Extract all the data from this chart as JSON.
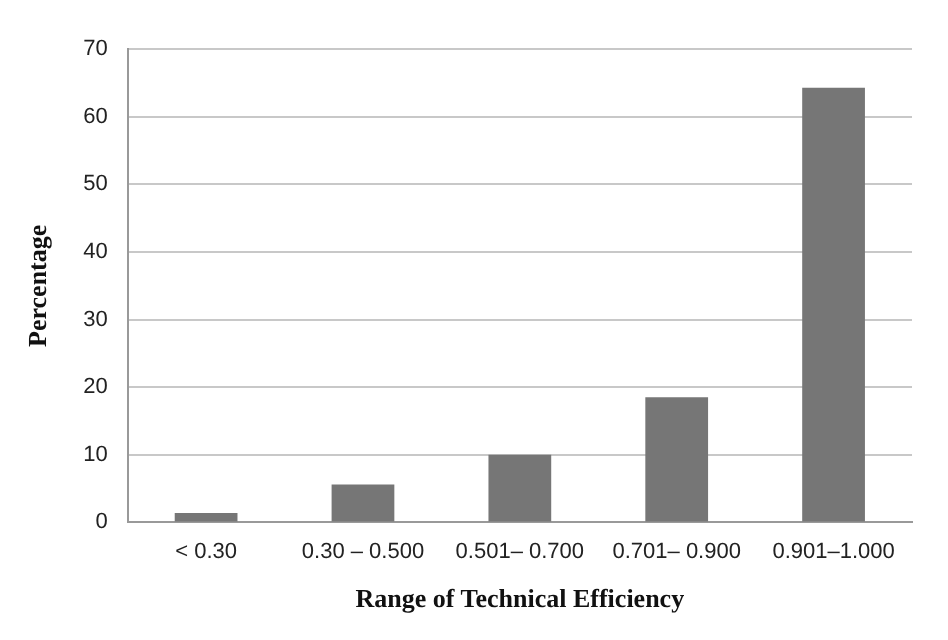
{
  "chart_data": {
    "type": "bar",
    "xlabel": "Range of Technical Efficiency",
    "ylabel": "Percentage",
    "categories": [
      "< 0.30",
      "0.30 – 0.500",
      "0.501– 0.700",
      "0.701– 0.900",
      "0.901–1.000"
    ],
    "values": [
      1.4,
      5.6,
      10.0,
      18.5,
      64.3
    ],
    "color": "#767676",
    "ylim": [
      0,
      70
    ],
    "yticks": [
      0,
      10,
      20,
      30,
      40,
      50,
      60,
      70
    ],
    "grid": "y",
    "legend": false
  }
}
